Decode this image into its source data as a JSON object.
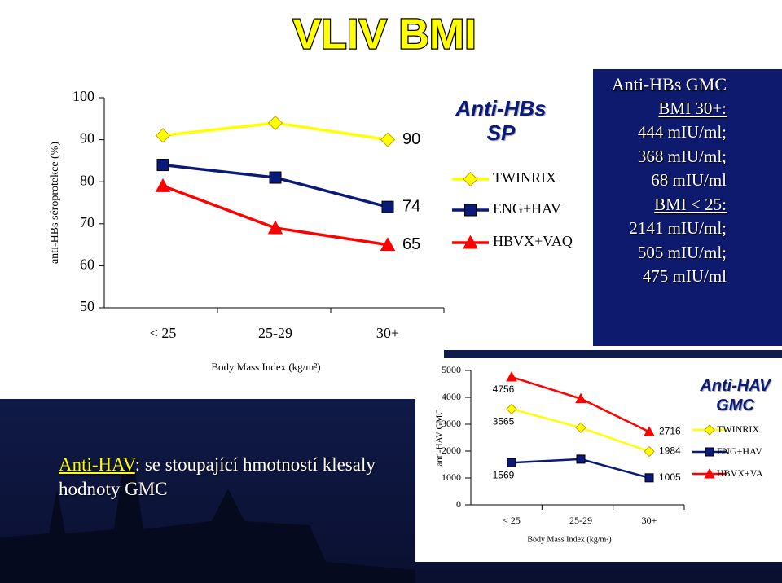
{
  "title": "VLIV BMI",
  "chart_data": [
    {
      "type": "line",
      "y_label": "anti-HBs séroprotekce (%)",
      "x_label": "Body Mass Index (kg/m²)",
      "legend_title": "Anti-HBs SP",
      "categories": [
        "< 25",
        "25-29",
        "30+"
      ],
      "ylim": [
        50,
        100
      ],
      "yticks": [
        50,
        60,
        70,
        80,
        90,
        100
      ],
      "series": [
        {
          "name": "TWINRIX",
          "color": "#ffff00",
          "marker": "diamond",
          "values": [
            91,
            94,
            90
          ]
        },
        {
          "name": "ENG+HAV",
          "color": "#0a1a78",
          "marker": "square",
          "values": [
            84,
            81,
            74
          ]
        },
        {
          "name": "HBVX+VAQ",
          "color": "#ff0000",
          "marker": "triangle",
          "values": [
            79,
            69,
            65
          ]
        }
      ]
    },
    {
      "type": "line",
      "y_label": "anti-HAV GMC",
      "x_label": "Body Mass Index (kg/m²)",
      "legend_title": "Anti-HAV GMC",
      "categories": [
        "< 25",
        "25-29",
        "30+"
      ],
      "ylim": [
        0,
        5000
      ],
      "yticks": [
        0,
        1000,
        2000,
        3000,
        4000,
        5000
      ],
      "series": [
        {
          "name": "TWINRIX",
          "color": "#ffff00",
          "marker": "diamond",
          "values": [
            3565,
            2870,
            1984
          ]
        },
        {
          "name": "ENG+HAV",
          "color": "#0a1a78",
          "marker": "square",
          "values": [
            1569,
            1700,
            1005
          ]
        },
        {
          "name": "HBVX+VA",
          "color": "#ff0000",
          "marker": "triangle",
          "values": [
            4756,
            3950,
            2716
          ]
        }
      ]
    }
  ],
  "gmc_box": {
    "title": "Anti-HBs GMC",
    "lines": [
      "BMI 30+:",
      "444 mIU/ml;",
      "368 mIU/ml;",
      "68 mIU/ml",
      "BMI < 25:",
      "2141 mIU/ml;",
      "505 mIU/ml;",
      "475 mIU/ml"
    ]
  },
  "note": {
    "highlight": "Anti-HAV",
    "text": ": se stoupající hmotností klesaly hodnoty GMC"
  }
}
